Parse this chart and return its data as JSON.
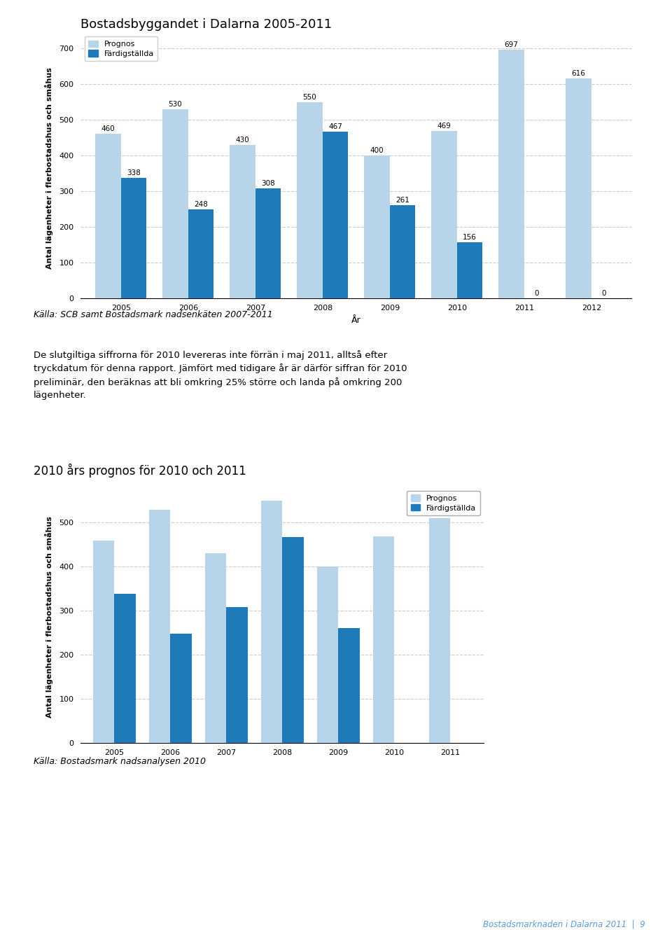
{
  "chart1": {
    "title": "Bostadsbyggandet i Dalarna 2005-2011",
    "years": [
      "2005",
      "2006",
      "2007",
      "2008",
      "2009",
      "2010",
      "2011",
      "2012"
    ],
    "prognos": [
      460,
      530,
      430,
      550,
      400,
      469,
      697,
      616
    ],
    "fard": [
      338,
      248,
      308,
      467,
      261,
      156,
      0,
      0
    ],
    "color_prognos": "#b8d4e8",
    "color_fard": "#1e7ab8",
    "ylabel": "Antal lägenheter i flerbostadshus och småhus",
    "xlabel": "År",
    "ylim": [
      0,
      730
    ],
    "yticks": [
      0,
      100,
      200,
      300,
      400,
      500,
      600,
      700
    ],
    "legend_prognos": "Prognos",
    "legend_fard": "Färdigställda",
    "source": "Källa: SCB samt Bostadsmark nadsenkäten 2007-2011"
  },
  "text_block": "De slutgiltiga siffrorna för 2010 levereras inte förrän i maj 2011, alltså efter tryckdatum för denna rapport. Jämfört med tidigare år är därför siffran för 2010 preliminär, den beräknas att bli omkring 25% större och landa på omkring 200 lägenheter.",
  "chart2": {
    "title": "2010 års prognos för 2010 och 2011",
    "years": [
      "2005",
      "2006",
      "2007",
      "2008",
      "2009",
      "2010",
      "2011"
    ],
    "prognos": [
      460,
      530,
      430,
      550,
      400,
      469,
      510
    ],
    "fard": [
      338,
      248,
      308,
      467,
      261,
      0,
      0
    ],
    "color_prognos": "#b8d4e8",
    "color_fard": "#1e7ab8",
    "ylabel": "Antal lägenheter i flerbostadshus och småhus",
    "ylim": [
      0,
      570
    ],
    "yticks": [
      0,
      100,
      200,
      300,
      400,
      500
    ],
    "legend_prognos": "Prognos",
    "legend_fard": "Färdigställda",
    "source": "Källa: Bostadsmark nadsanalysen 2010"
  },
  "footer": "Bostadsmarknaden i Dalarna 2011  |  9",
  "bg_color": "#ffffff",
  "title_fontsize": 13,
  "axis_label_fontsize": 8,
  "tick_fontsize": 8,
  "bar_label_fontsize": 7.5,
  "legend_fontsize": 8,
  "source_fontsize": 9,
  "text_fontsize": 9.5
}
